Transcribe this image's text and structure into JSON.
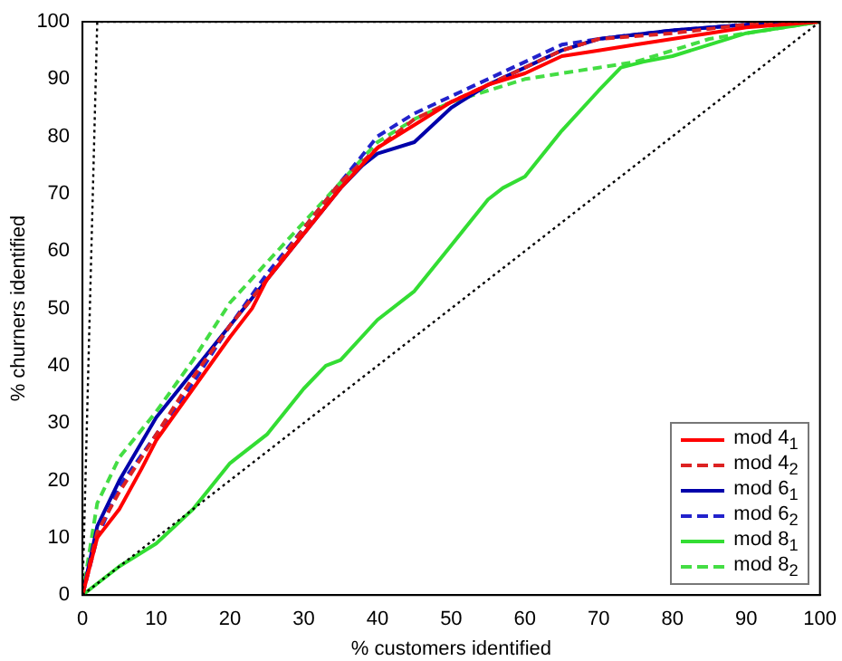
{
  "chart_data": {
    "type": "line",
    "xlabel": "% customers identified",
    "ylabel": "% churners identified",
    "xlim": [
      0,
      100
    ],
    "ylim": [
      0,
      100
    ],
    "xticks": [
      0,
      10,
      20,
      30,
      40,
      50,
      60,
      70,
      80,
      90,
      100
    ],
    "yticks": [
      0,
      10,
      20,
      30,
      40,
      50,
      60,
      70,
      80,
      90,
      100
    ],
    "grid": false,
    "legend": "bottom right",
    "marker": "none",
    "series": [
      {
        "color": "#000000",
        "line_style": "dotted",
        "x": [
          0,
          2,
          100
        ],
        "values": [
          0,
          100,
          100
        ]
      },
      {
        "color": "#000000",
        "line_style": "dotted",
        "x": [
          0,
          100
        ],
        "values": [
          0,
          100
        ]
      },
      {
        "name": "mod 4$_{1}$",
        "color": "#ff0000",
        "line_style": "solid",
        "x": [
          0,
          2,
          5,
          8,
          10,
          15,
          20,
          23,
          25,
          30,
          35,
          40,
          45,
          50,
          55,
          60,
          65,
          70,
          75,
          80,
          85,
          90,
          100
        ],
        "values": [
          0,
          10,
          15,
          22,
          27,
          36,
          45,
          50,
          55,
          63,
          71,
          78,
          82,
          86,
          89,
          91,
          94,
          95,
          96,
          97,
          98,
          99,
          100
        ]
      },
      {
        "name": "mod 4$_{2}$",
        "color": "#dd2222",
        "line_style": "dashed",
        "x": [
          0,
          2,
          5,
          10,
          15,
          20,
          25,
          30,
          35,
          40,
          45,
          50,
          55,
          60,
          65,
          70,
          80,
          90,
          100
        ],
        "values": [
          0,
          11,
          18,
          28,
          38,
          47,
          55,
          64,
          72,
          78,
          83,
          86,
          89,
          92,
          95,
          97,
          98,
          99.5,
          100
        ]
      },
      {
        "name": "mod 6$_{1}$",
        "color": "#0000aa",
        "line_style": "solid",
        "x": [
          0,
          2,
          5,
          10,
          15,
          20,
          25,
          30,
          35,
          38,
          40,
          45,
          50,
          55,
          60,
          65,
          70,
          80,
          90,
          100
        ],
        "values": [
          0,
          12,
          20,
          31,
          39,
          47,
          55,
          63,
          71,
          75,
          77,
          79,
          85,
          89,
          92,
          95,
          97,
          98.5,
          99.5,
          100
        ]
      },
      {
        "name": "mod 6$_{2}$",
        "color": "#2222cc",
        "line_style": "dashed",
        "x": [
          0,
          2,
          5,
          10,
          15,
          20,
          25,
          30,
          35,
          40,
          45,
          50,
          55,
          60,
          65,
          70,
          80,
          90,
          100
        ],
        "values": [
          0,
          10,
          19,
          28,
          37,
          47,
          56,
          64,
          72,
          80,
          84,
          87,
          90,
          93,
          96,
          97,
          98.5,
          99.5,
          100
        ]
      },
      {
        "name": "mod 8$_{1}$",
        "color": "#33dd33",
        "line_style": "solid",
        "x": [
          0,
          2,
          5,
          10,
          15,
          20,
          25,
          30,
          33,
          35,
          40,
          45,
          50,
          55,
          57,
          60,
          65,
          70,
          73,
          76,
          80,
          85,
          90,
          100
        ],
        "values": [
          0,
          2,
          5,
          9,
          15,
          23,
          28,
          36,
          40,
          41,
          48,
          53,
          61,
          69,
          71,
          73,
          81,
          88,
          92,
          93,
          94,
          96,
          98,
          100
        ]
      },
      {
        "name": "mod 8$_{2}$",
        "color": "#44dd44",
        "line_style": "dashed",
        "x": [
          0,
          2,
          5,
          10,
          15,
          20,
          25,
          30,
          35,
          40,
          45,
          50,
          55,
          60,
          65,
          70,
          75,
          80,
          85,
          90,
          100
        ],
        "values": [
          0,
          16,
          24,
          32,
          41,
          51,
          58,
          65,
          72,
          79,
          83,
          86,
          88,
          90,
          91,
          92,
          93,
          95,
          97,
          98,
          100
        ]
      }
    ]
  }
}
